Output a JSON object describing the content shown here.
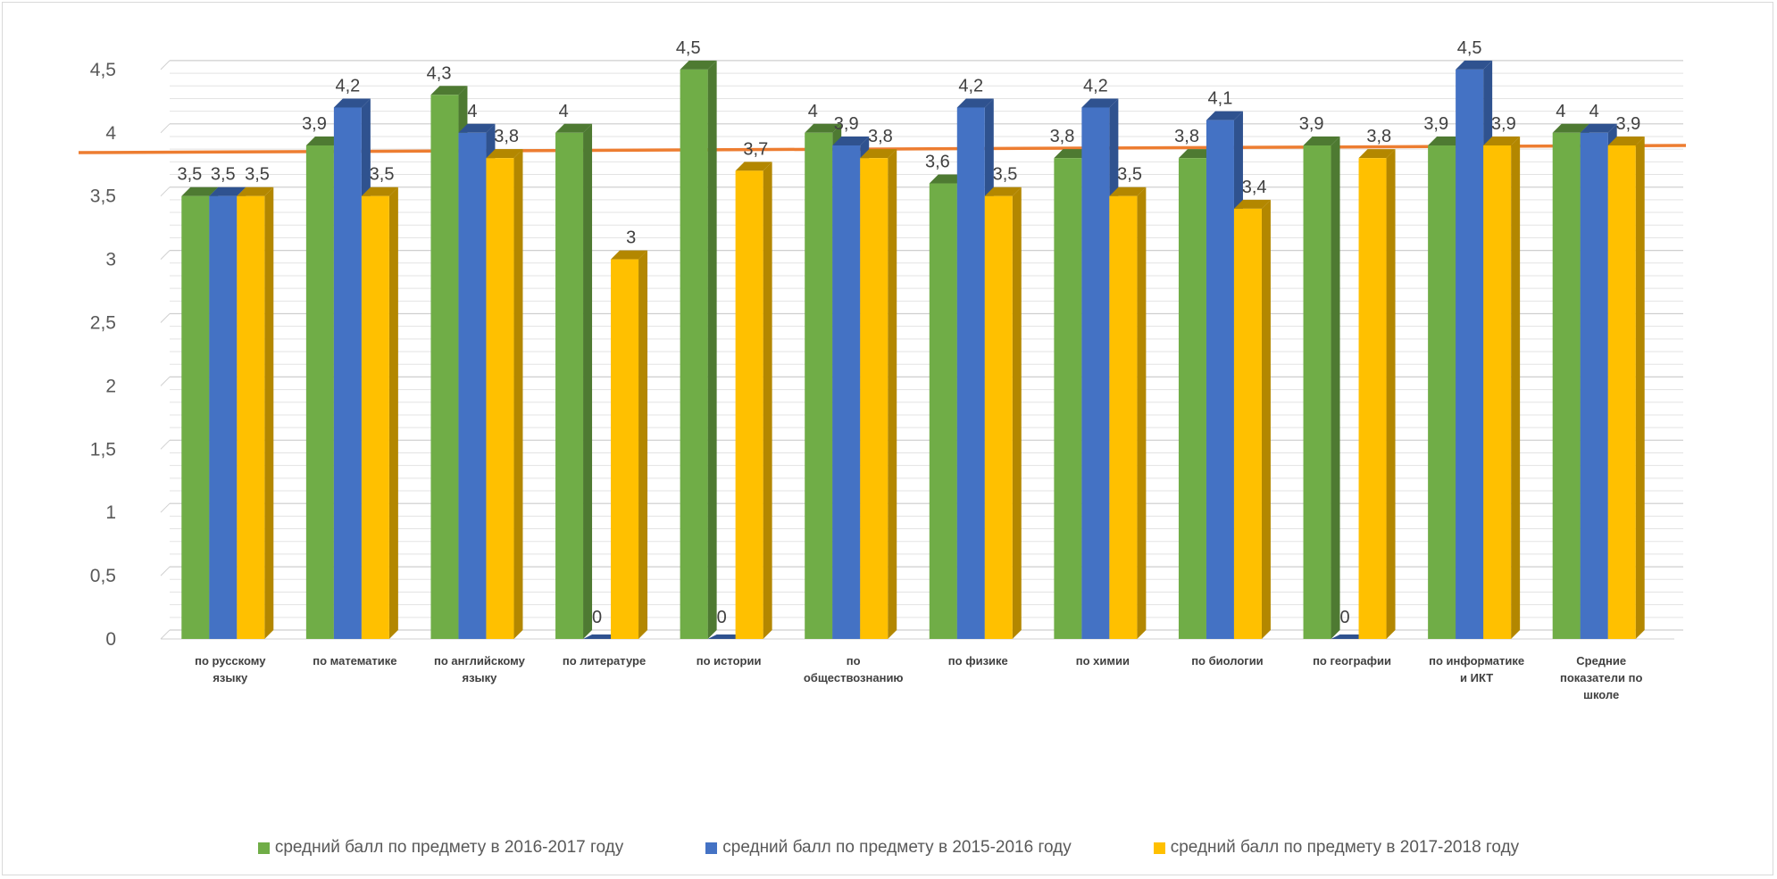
{
  "chart_data": {
    "type": "bar",
    "title": "",
    "xlabel": "",
    "ylabel": "",
    "ylim": [
      0,
      4.5
    ],
    "yticks": [
      "0",
      "0,5",
      "1",
      "1,5",
      "2",
      "2,5",
      "3",
      "3,5",
      "4",
      "4,5"
    ],
    "grid": true,
    "legend_position": "bottom",
    "categories": [
      [
        "по русскому",
        "языку"
      ],
      [
        "по математике"
      ],
      [
        "по английскому",
        "языку"
      ],
      [
        "по литературе"
      ],
      [
        "по истории"
      ],
      [
        "по",
        "обществознанию"
      ],
      [
        "по физике"
      ],
      [
        "по химии"
      ],
      [
        "по биологии"
      ],
      [
        "по географии"
      ],
      [
        "по информатике",
        "и ИКТ"
      ],
      [
        "Средние",
        "показатели по",
        "школе"
      ]
    ],
    "series": [
      {
        "name": "средний балл по предмету в 2016-2017 году",
        "color": "#70ad47",
        "side_color": "#4e7a32",
        "values": [
          3.5,
          3.9,
          4.3,
          4,
          4.5,
          4,
          3.6,
          3.8,
          3.8,
          3.9,
          3.9,
          4
        ],
        "labels": [
          "3,5",
          "3,9",
          "4,3",
          "4",
          "4,5",
          "4",
          "3,6",
          "3,8",
          "3,8",
          "3,9",
          "3,9",
          "4"
        ]
      },
      {
        "name": "средний балл по предмету в 2015-2016 году",
        "color": "#4472c4",
        "side_color": "#2f528f",
        "values": [
          3.5,
          4.2,
          4,
          0,
          0,
          3.9,
          4.2,
          4.2,
          4.1,
          0,
          4.5,
          4
        ],
        "labels": [
          "3,5",
          "4,2",
          "4",
          "0",
          "0",
          "3,9",
          "4,2",
          "4,2",
          "4,1",
          "0",
          "4,5",
          "4"
        ]
      },
      {
        "name": "средний балл по предмету в 2017-2018 году",
        "color": "#ffc000",
        "side_color": "#b38700",
        "values": [
          3.5,
          3.5,
          3.8,
          3,
          3.7,
          3.8,
          3.5,
          3.5,
          3.4,
          3.8,
          3.9,
          3.9
        ],
        "labels": [
          "3,5",
          "3,5",
          "3,8",
          "3",
          "3,7",
          "3,8",
          "3,5",
          "3,5",
          "3,4",
          "3,8",
          "3,9",
          "3,9"
        ]
      }
    ],
    "reference_line": {
      "color": "#ed7d31"
    }
  }
}
